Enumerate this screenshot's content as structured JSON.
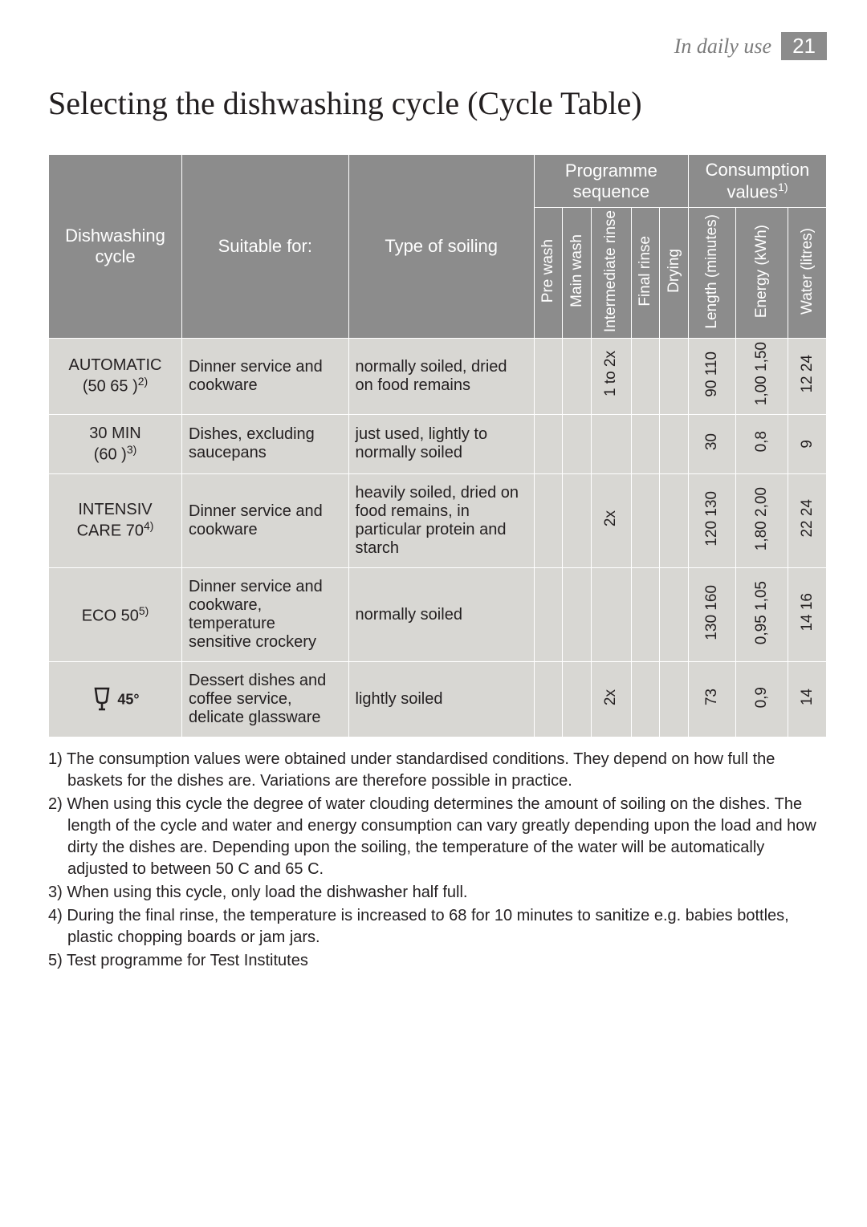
{
  "header": {
    "section_label": "In daily use",
    "page_number": "21"
  },
  "title": "Selecting the dishwashing cycle (Cycle Table)",
  "table": {
    "group_headers": {
      "programme_sequence": "Programme sequence",
      "consumption": "Consumption values"
    },
    "col_headers": {
      "cycle": "Dishwashing cycle",
      "suitable": "Suitable for:",
      "soiling": "Type of soiling",
      "pre_wash": "Pre wash",
      "main_wash": "Main wash",
      "intermediate": "Intermediate rinse",
      "final_rinse": "Final rinse",
      "drying": "Drying",
      "length": "Length (minutes)",
      "energy": "Energy (kWh)",
      "water": "Water (litres)"
    },
    "rows": [
      {
        "cycle_line1": "AUTOMATIC",
        "cycle_line2": "(50  65 )",
        "cycle_sup": "2)",
        "suitable": "Dinner service and cookware",
        "soiling": "normally soiled, dried on food remains",
        "intermediate": "1 to 2x",
        "length": "90  110",
        "energy": "1,00  1,50",
        "water": "12  24"
      },
      {
        "cycle_line1": "30 MIN",
        "cycle_line2": "(60 )",
        "cycle_sup": "3)",
        "suitable": "Dishes, excluding saucepans",
        "soiling": "just used, lightly to normally soiled",
        "intermediate": "",
        "length": "30",
        "energy": "0,8",
        "water": "9"
      },
      {
        "cycle_line1": "INTENSIV",
        "cycle_line2": "CARE 70",
        "cycle_sup": "4)",
        "suitable": "Dinner service and cookware",
        "soiling": "heavily soiled, dried on food remains, in particular protein and starch",
        "intermediate": "2x",
        "length": "120  130",
        "energy": "1,80  2,00",
        "water": "22  24"
      },
      {
        "cycle_line1": "ECO 50",
        "cycle_line2": "",
        "cycle_sup": "5)",
        "suitable": "Dinner service and cookware, temperature sensitive crockery",
        "soiling": "normally soiled",
        "intermediate": "",
        "length": "130  160",
        "energy": "0,95  1,05",
        "water": "14  16"
      },
      {
        "cycle_icon": "glass",
        "cycle_line1": "45°",
        "cycle_line2": "",
        "cycle_sup": "",
        "suitable": "Dessert dishes and coffee service, delicate glassware",
        "soiling": "lightly soiled",
        "intermediate": "2x",
        "length": "73",
        "energy": "0,9",
        "water": "14"
      }
    ]
  },
  "footnotes": [
    "1) The consumption values were obtained under standardised conditions. They depend on how full the baskets for the dishes are. Variations are therefore possible in practice.",
    "2) When using this cycle the degree of water clouding determines the amount of soiling on the dishes. The length of the cycle and water and energy consumption can vary greatly   depending upon the load and how dirty the dishes are. Depending upon the soiling, the temperature of the water will be automatically adjusted to between 50 C and 65 C.",
    "3) When using this cycle, only load the dishwasher half full.",
    "4) During the final rinse, the temperature is increased to 68  for 10 minutes to sanitize e.g. babies  bottles, plastic chopping boards or jam jars.",
    "5) Test programme for Test Institutes"
  ],
  "colors": {
    "header_bg": "#8c8c8c",
    "header_text": "#ffffff",
    "cell_bg": "#d8d7d3",
    "body_text": "#231f20"
  }
}
